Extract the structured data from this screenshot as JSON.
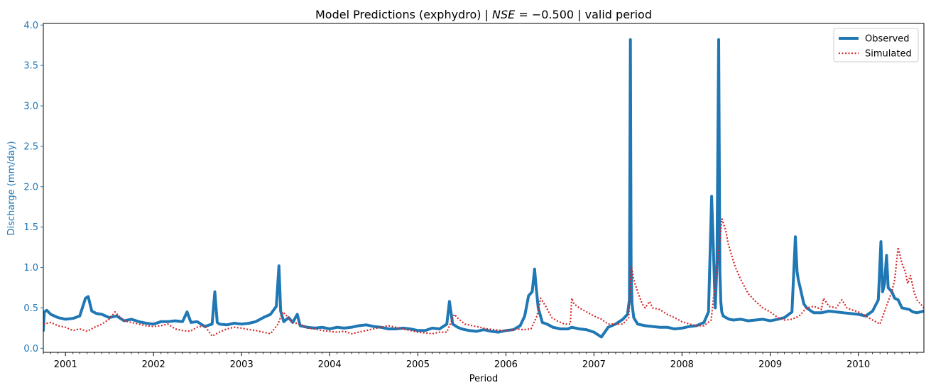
{
  "chart_data": {
    "type": "line",
    "title_parts": {
      "prefix": "Model Predictions (exphydro) | ",
      "metric_name": "NSE",
      "metric_value": " = −0.500",
      "suffix": " | valid period"
    },
    "xlabel": "Period",
    "ylabel": "Discharge (mm/day)",
    "x_type": "date",
    "xlim": [
      "2000-10-01",
      "2010-09-30"
    ],
    "ylim": [
      -0.05,
      4.02
    ],
    "x_ticks": [
      "2001",
      "2002",
      "2003",
      "2004",
      "2005",
      "2006",
      "2007",
      "2008",
      "2009",
      "2010"
    ],
    "y_ticks": [
      "0.0",
      "0.5",
      "1.0",
      "1.5",
      "2.0",
      "2.5",
      "3.0",
      "3.5",
      "4.0"
    ],
    "grid": false,
    "legend_position": "top-right",
    "colors": {
      "observed": "#1f77b4",
      "simulated": "#d62728",
      "ylabel": "#1f77b4",
      "axis": "#000000"
    },
    "series": [
      {
        "name": "Observed",
        "style": "solid",
        "x": [
          "2000-10-01",
          "2000-10-05",
          "2000-10-15",
          "2000-11-01",
          "2000-12-01",
          "2001-01-01",
          "2001-02-01",
          "2001-03-01",
          "2001-03-25",
          "2001-04-05",
          "2001-04-20",
          "2001-05-10",
          "2001-06-01",
          "2001-07-01",
          "2001-08-01",
          "2001-09-01",
          "2001-10-01",
          "2001-11-01",
          "2001-12-01",
          "2002-01-01",
          "2002-02-01",
          "2002-03-01",
          "2002-04-01",
          "2002-05-01",
          "2002-05-20",
          "2002-06-05",
          "2002-07-01",
          "2002-08-01",
          "2002-09-01",
          "2002-09-12",
          "2002-09-22",
          "2002-10-01",
          "2002-11-01",
          "2002-12-01",
          "2003-01-01",
          "2003-02-01",
          "2003-03-01",
          "2003-04-01",
          "2003-05-01",
          "2003-05-25",
          "2003-06-05",
          "2003-06-12",
          "2003-06-25",
          "2003-07-15",
          "2003-08-01",
          "2003-08-20",
          "2003-09-01",
          "2003-10-01",
          "2003-11-01",
          "2003-12-01",
          "2004-01-01",
          "2004-02-01",
          "2004-03-01",
          "2004-04-01",
          "2004-05-01",
          "2004-06-01",
          "2004-07-01",
          "2004-08-01",
          "2004-09-01",
          "2004-10-01",
          "2004-11-01",
          "2004-12-01",
          "2005-01-01",
          "2005-02-01",
          "2005-03-01",
          "2005-04-01",
          "2005-05-01",
          "2005-05-12",
          "2005-05-25",
          "2005-06-15",
          "2005-07-01",
          "2005-08-01",
          "2005-09-01",
          "2005-10-01",
          "2005-11-01",
          "2005-12-01",
          "2006-01-01",
          "2006-02-01",
          "2006-03-01",
          "2006-03-20",
          "2006-04-05",
          "2006-04-20",
          "2006-04-30",
          "2006-05-05",
          "2006-05-15",
          "2006-06-01",
          "2006-06-20",
          "2006-07-15",
          "2006-08-15",
          "2006-09-15",
          "2006-10-01",
          "2006-11-01",
          "2006-12-01",
          "2007-01-01",
          "2007-02-01",
          "2007-03-01",
          "2007-04-01",
          "2007-05-01",
          "2007-05-20",
          "2007-05-28",
          "2007-06-01",
          "2007-06-04",
          "2007-06-08",
          "2007-06-15",
          "2007-07-01",
          "2007-08-01",
          "2007-09-01",
          "2007-10-01",
          "2007-11-01",
          "2007-12-01",
          "2008-01-01",
          "2008-02-01",
          "2008-03-01",
          "2008-04-01",
          "2008-04-20",
          "2008-05-03",
          "2008-05-10",
          "2008-05-18",
          "2008-05-25",
          "2008-06-01",
          "2008-06-06",
          "2008-06-10",
          "2008-06-14",
          "2008-06-20",
          "2008-07-01",
          "2008-07-15",
          "2008-08-01",
          "2008-09-01",
          "2008-10-01",
          "2008-11-01",
          "2008-12-01",
          "2009-01-01",
          "2009-02-01",
          "2009-03-01",
          "2009-04-01",
          "2009-04-15",
          "2009-04-22",
          "2009-04-27",
          "2009-05-05",
          "2009-05-20",
          "2009-06-01",
          "2009-06-20",
          "2009-07-01",
          "2009-08-01",
          "2009-09-01",
          "2009-10-01",
          "2009-11-01",
          "2009-12-01",
          "2010-01-01",
          "2010-02-01",
          "2010-03-01",
          "2010-03-25",
          "2010-04-05",
          "2010-04-12",
          "2010-04-20",
          "2010-04-28",
          "2010-05-05",
          "2010-05-20",
          "2010-06-01",
          "2010-06-15",
          "2010-07-01",
          "2010-08-01",
          "2010-08-15",
          "2010-09-01",
          "2010-09-30"
        ],
        "y": [
          0.22,
          0.45,
          0.47,
          0.42,
          0.38,
          0.36,
          0.37,
          0.4,
          0.62,
          0.64,
          0.46,
          0.43,
          0.42,
          0.38,
          0.4,
          0.34,
          0.36,
          0.33,
          0.31,
          0.3,
          0.33,
          0.33,
          0.34,
          0.33,
          0.45,
          0.32,
          0.33,
          0.27,
          0.3,
          0.7,
          0.32,
          0.3,
          0.29,
          0.31,
          0.3,
          0.31,
          0.33,
          0.38,
          0.42,
          0.52,
          1.02,
          0.46,
          0.33,
          0.38,
          0.32,
          0.42,
          0.28,
          0.26,
          0.25,
          0.26,
          0.24,
          0.26,
          0.25,
          0.26,
          0.28,
          0.29,
          0.27,
          0.26,
          0.24,
          0.24,
          0.25,
          0.24,
          0.22,
          0.22,
          0.25,
          0.24,
          0.3,
          0.58,
          0.3,
          0.26,
          0.24,
          0.22,
          0.21,
          0.23,
          0.21,
          0.2,
          0.22,
          0.23,
          0.28,
          0.4,
          0.65,
          0.7,
          0.98,
          0.8,
          0.5,
          0.32,
          0.3,
          0.26,
          0.24,
          0.24,
          0.26,
          0.24,
          0.23,
          0.2,
          0.14,
          0.26,
          0.3,
          0.36,
          0.42,
          0.6,
          3.82,
          0.98,
          0.55,
          0.38,
          0.3,
          0.28,
          0.27,
          0.26,
          0.26,
          0.24,
          0.25,
          0.27,
          0.28,
          0.32,
          0.45,
          1.88,
          1.25,
          0.5,
          1.05,
          3.82,
          0.95,
          0.58,
          0.45,
          0.4,
          0.38,
          0.36,
          0.35,
          0.36,
          0.34,
          0.35,
          0.36,
          0.34,
          0.36,
          0.38,
          0.45,
          1.38,
          0.95,
          0.85,
          0.75,
          0.55,
          0.5,
          0.46,
          0.44,
          0.44,
          0.46,
          0.45,
          0.44,
          0.43,
          0.42,
          0.4,
          0.46,
          0.6,
          1.32,
          0.7,
          0.8,
          1.15,
          0.75,
          0.7,
          0.62,
          0.6,
          0.5,
          0.48,
          0.45,
          0.44,
          0.46
        ]
      },
      {
        "name": "Simulated",
        "style": "dotted",
        "x": [
          "2000-10-01",
          "2000-11-01",
          "2000-12-01",
          "2001-01-01",
          "2001-02-01",
          "2001-03-01",
          "2001-04-01",
          "2001-05-01",
          "2001-06-01",
          "2001-07-01",
          "2001-07-25",
          "2001-08-10",
          "2001-09-01",
          "2001-10-01",
          "2001-11-01",
          "2001-12-01",
          "2002-01-01",
          "2002-02-01",
          "2002-03-01",
          "2002-04-01",
          "2002-05-01",
          "2002-06-01",
          "2002-07-01",
          "2002-08-01",
          "2002-09-01",
          "2002-10-01",
          "2002-11-01",
          "2002-12-01",
          "2003-01-01",
          "2003-02-01",
          "2003-03-01",
          "2003-04-01",
          "2003-05-01",
          "2003-06-01",
          "2003-06-20",
          "2003-07-15",
          "2003-08-01",
          "2003-09-01",
          "2003-10-01",
          "2003-11-01",
          "2003-12-01",
          "2004-01-01",
          "2004-02-01",
          "2004-03-01",
          "2004-04-01",
          "2004-05-01",
          "2004-06-01",
          "2004-07-01",
          "2004-08-01",
          "2004-09-01",
          "2004-10-01",
          "2004-11-01",
          "2004-12-01",
          "2005-01-01",
          "2005-02-01",
          "2005-03-01",
          "2005-04-01",
          "2005-05-01",
          "2005-06-01",
          "2005-06-20",
          "2005-07-15",
          "2005-08-15",
          "2005-09-15",
          "2005-10-15",
          "2005-11-15",
          "2005-12-15",
          "2006-01-15",
          "2006-02-15",
          "2006-03-15",
          "2006-04-15",
          "2006-05-10",
          "2006-05-25",
          "2006-06-15",
          "2006-07-10",
          "2006-08-01",
          "2006-09-01",
          "2006-09-25",
          "2006-10-01",
          "2006-10-10",
          "2006-11-01",
          "2006-12-01",
          "2007-01-01",
          "2007-02-01",
          "2007-03-01",
          "2007-04-01",
          "2007-05-01",
          "2007-05-25",
          "2007-06-05",
          "2007-06-15",
          "2007-07-01",
          "2007-07-20",
          "2007-08-01",
          "2007-08-20",
          "2007-09-01",
          "2007-10-01",
          "2007-11-01",
          "2007-12-01",
          "2008-01-01",
          "2008-02-01",
          "2008-03-01",
          "2008-04-01",
          "2008-05-01",
          "2008-06-01",
          "2008-06-15",
          "2008-07-01",
          "2008-07-10",
          "2008-07-25",
          "2008-08-10",
          "2008-09-01",
          "2008-10-01",
          "2008-11-01",
          "2008-12-01",
          "2009-01-01",
          "2009-02-01",
          "2009-03-01",
          "2009-04-01",
          "2009-05-01",
          "2009-06-01",
          "2009-07-01",
          "2009-08-01",
          "2009-08-10",
          "2009-09-01",
          "2009-10-01",
          "2009-10-25",
          "2009-11-15",
          "2009-12-01",
          "2010-01-01",
          "2010-02-01",
          "2010-03-01",
          "2010-04-01",
          "2010-05-01",
          "2010-05-20",
          "2010-06-01",
          "2010-06-15",
          "2010-07-01",
          "2010-07-15",
          "2010-07-25",
          "2010-08-05",
          "2010-08-20",
          "2010-09-01",
          "2010-09-30"
        ],
        "y": [
          0.3,
          0.32,
          0.28,
          0.26,
          0.22,
          0.24,
          0.21,
          0.26,
          0.3,
          0.36,
          0.45,
          0.4,
          0.34,
          0.32,
          0.3,
          0.28,
          0.27,
          0.28,
          0.3,
          0.24,
          0.22,
          0.21,
          0.26,
          0.28,
          0.15,
          0.2,
          0.24,
          0.26,
          0.25,
          0.23,
          0.22,
          0.2,
          0.18,
          0.3,
          0.45,
          0.38,
          0.32,
          0.3,
          0.25,
          0.24,
          0.22,
          0.21,
          0.2,
          0.21,
          0.18,
          0.2,
          0.22,
          0.24,
          0.26,
          0.28,
          0.26,
          0.24,
          0.22,
          0.2,
          0.19,
          0.18,
          0.2,
          0.2,
          0.42,
          0.36,
          0.3,
          0.28,
          0.26,
          0.24,
          0.23,
          0.22,
          0.22,
          0.24,
          0.23,
          0.24,
          0.4,
          0.62,
          0.52,
          0.38,
          0.34,
          0.3,
          0.3,
          0.62,
          0.55,
          0.5,
          0.45,
          0.4,
          0.36,
          0.3,
          0.3,
          0.3,
          0.38,
          1.02,
          0.85,
          0.7,
          0.55,
          0.5,
          0.58,
          0.5,
          0.48,
          0.42,
          0.38,
          0.33,
          0.3,
          0.28,
          0.28,
          0.35,
          1.2,
          1.6,
          1.45,
          1.3,
          1.15,
          1.0,
          0.85,
          0.68,
          0.58,
          0.5,
          0.45,
          0.38,
          0.35,
          0.36,
          0.4,
          0.5,
          0.52,
          0.48,
          0.62,
          0.52,
          0.5,
          0.6,
          0.5,
          0.48,
          0.45,
          0.4,
          0.35,
          0.3,
          0.55,
          0.7,
          0.85,
          1.25,
          1.05,
          0.95,
          0.8,
          0.9,
          0.7,
          0.6,
          0.5
        ]
      }
    ]
  }
}
